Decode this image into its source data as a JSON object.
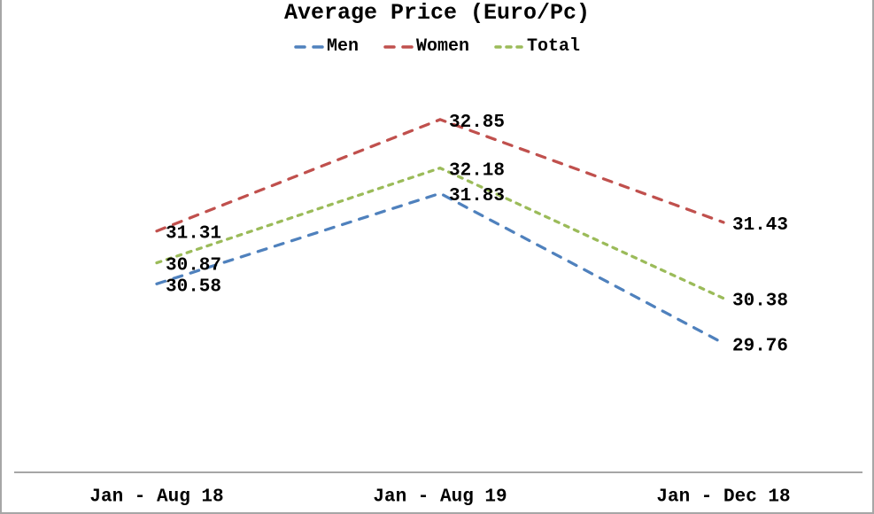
{
  "page": {
    "background": "#ffffff",
    "border_color": "#a6a6a6"
  },
  "chart_data": {
    "type": "line",
    "title": "Average Price (Euro/Pc)",
    "categories": [
      "Jan - Aug 18",
      "Jan - Aug 19",
      "Jan - Dec 18"
    ],
    "series": [
      {
        "name": "Men",
        "values": [
          30.58,
          31.83,
          29.76
        ],
        "labels": [
          "30.58",
          "31.83",
          "29.76"
        ],
        "color": "#4F81BD",
        "dash_style": "long-dash"
      },
      {
        "name": "Women",
        "values": [
          31.31,
          32.85,
          31.43
        ],
        "labels": [
          "31.31",
          "32.85",
          "31.43"
        ],
        "color": "#C0504D",
        "dash_style": "long-dash"
      },
      {
        "name": "Total",
        "values": [
          30.87,
          32.18,
          30.38
        ],
        "labels": [
          "30.87",
          "32.18",
          "30.38"
        ],
        "color": "#9BBB59",
        "dash_style": "short-dash"
      }
    ],
    "xlabel": "",
    "ylabel": "",
    "ylim": [
      28,
      34
    ],
    "grid": false,
    "y_axis_visible": false,
    "legend_position": "top",
    "data_labels_visible": true,
    "axis_line_color": "#898989",
    "label_text_color": "#000000"
  }
}
